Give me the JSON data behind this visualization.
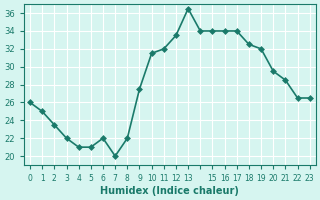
{
  "x": [
    0,
    1,
    2,
    3,
    4,
    5,
    6,
    7,
    8,
    9,
    10,
    11,
    12,
    13,
    14,
    15,
    16,
    17,
    18,
    19,
    20,
    21,
    22,
    23
  ],
  "y": [
    26,
    25,
    23.5,
    22,
    21,
    21,
    22,
    20,
    22,
    27.5,
    31.5,
    32,
    33.5,
    36.5,
    34,
    34,
    34,
    34,
    32.5,
    32,
    29.5,
    28.5,
    26.5,
    26.5
  ],
  "line_color": "#1a7a6a",
  "marker": "D",
  "marker_size": 3,
  "bg_color": "#d6f5f0",
  "grid_color": "#ffffff",
  "axis_color": "#1a7a6a",
  "xlabel": "Humidex (Indice chaleur)",
  "ylabel": "",
  "ylim": [
    19,
    37
  ],
  "yticks": [
    20,
    22,
    24,
    26,
    28,
    30,
    32,
    34,
    36
  ],
  "xlim": [
    -0.5,
    23.5
  ],
  "xticks": [
    0,
    1,
    2,
    3,
    4,
    5,
    6,
    7,
    8,
    9,
    10,
    11,
    12,
    13,
    14,
    15,
    16,
    17,
    18,
    19,
    20,
    21,
    22,
    23
  ],
  "xtick_labels": [
    "0",
    "1",
    "2",
    "3",
    "4",
    "5",
    "6",
    "7",
    "8",
    "9",
    "10",
    "11",
    "12",
    "13",
    "",
    "15",
    "16",
    "17",
    "18",
    "19",
    "20",
    "21",
    "22",
    "23"
  ],
  "tick_color": "#1a7a6a",
  "font_color": "#1a7a6a"
}
